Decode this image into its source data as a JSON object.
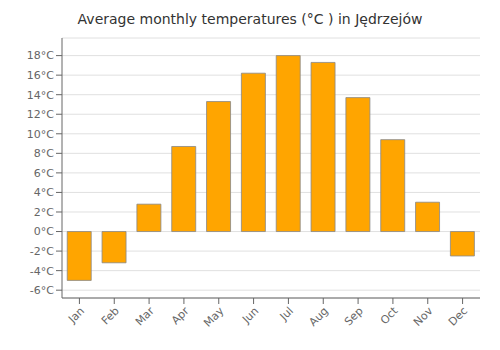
{
  "chart_data": {
    "type": "bar",
    "title": "Average monthly temperatures (°C ) in Jędrzejów",
    "categories": [
      "Jan",
      "Feb",
      "Mar",
      "Apr",
      "May",
      "Jun",
      "Jul",
      "Aug",
      "Sep",
      "Oct",
      "Nov",
      "Dec"
    ],
    "values": [
      -5.0,
      -3.2,
      2.8,
      8.7,
      13.3,
      16.2,
      18.0,
      17.3,
      13.7,
      9.4,
      3.0,
      -2.5
    ],
    "color": "#FFA500",
    "ylim": [
      -6.8,
      19.8
    ],
    "yticks": [
      {
        "value": -6,
        "label": "-6°C"
      },
      {
        "value": -4,
        "label": "-4°C"
      },
      {
        "value": -2,
        "label": "-2°C"
      },
      {
        "value": 0,
        "label": "0°C"
      },
      {
        "value": 2,
        "label": "2°C"
      },
      {
        "value": 4,
        "label": "4°C"
      },
      {
        "value": 6,
        "label": "6°C"
      },
      {
        "value": 8,
        "label": "8°C"
      },
      {
        "value": 10,
        "label": "10°C"
      },
      {
        "value": 12,
        "label": "12°C"
      },
      {
        "value": 14,
        "label": "14°C"
      },
      {
        "value": 16,
        "label": "16°C"
      },
      {
        "value": 18,
        "label": "18°C"
      }
    ],
    "grid": true
  }
}
